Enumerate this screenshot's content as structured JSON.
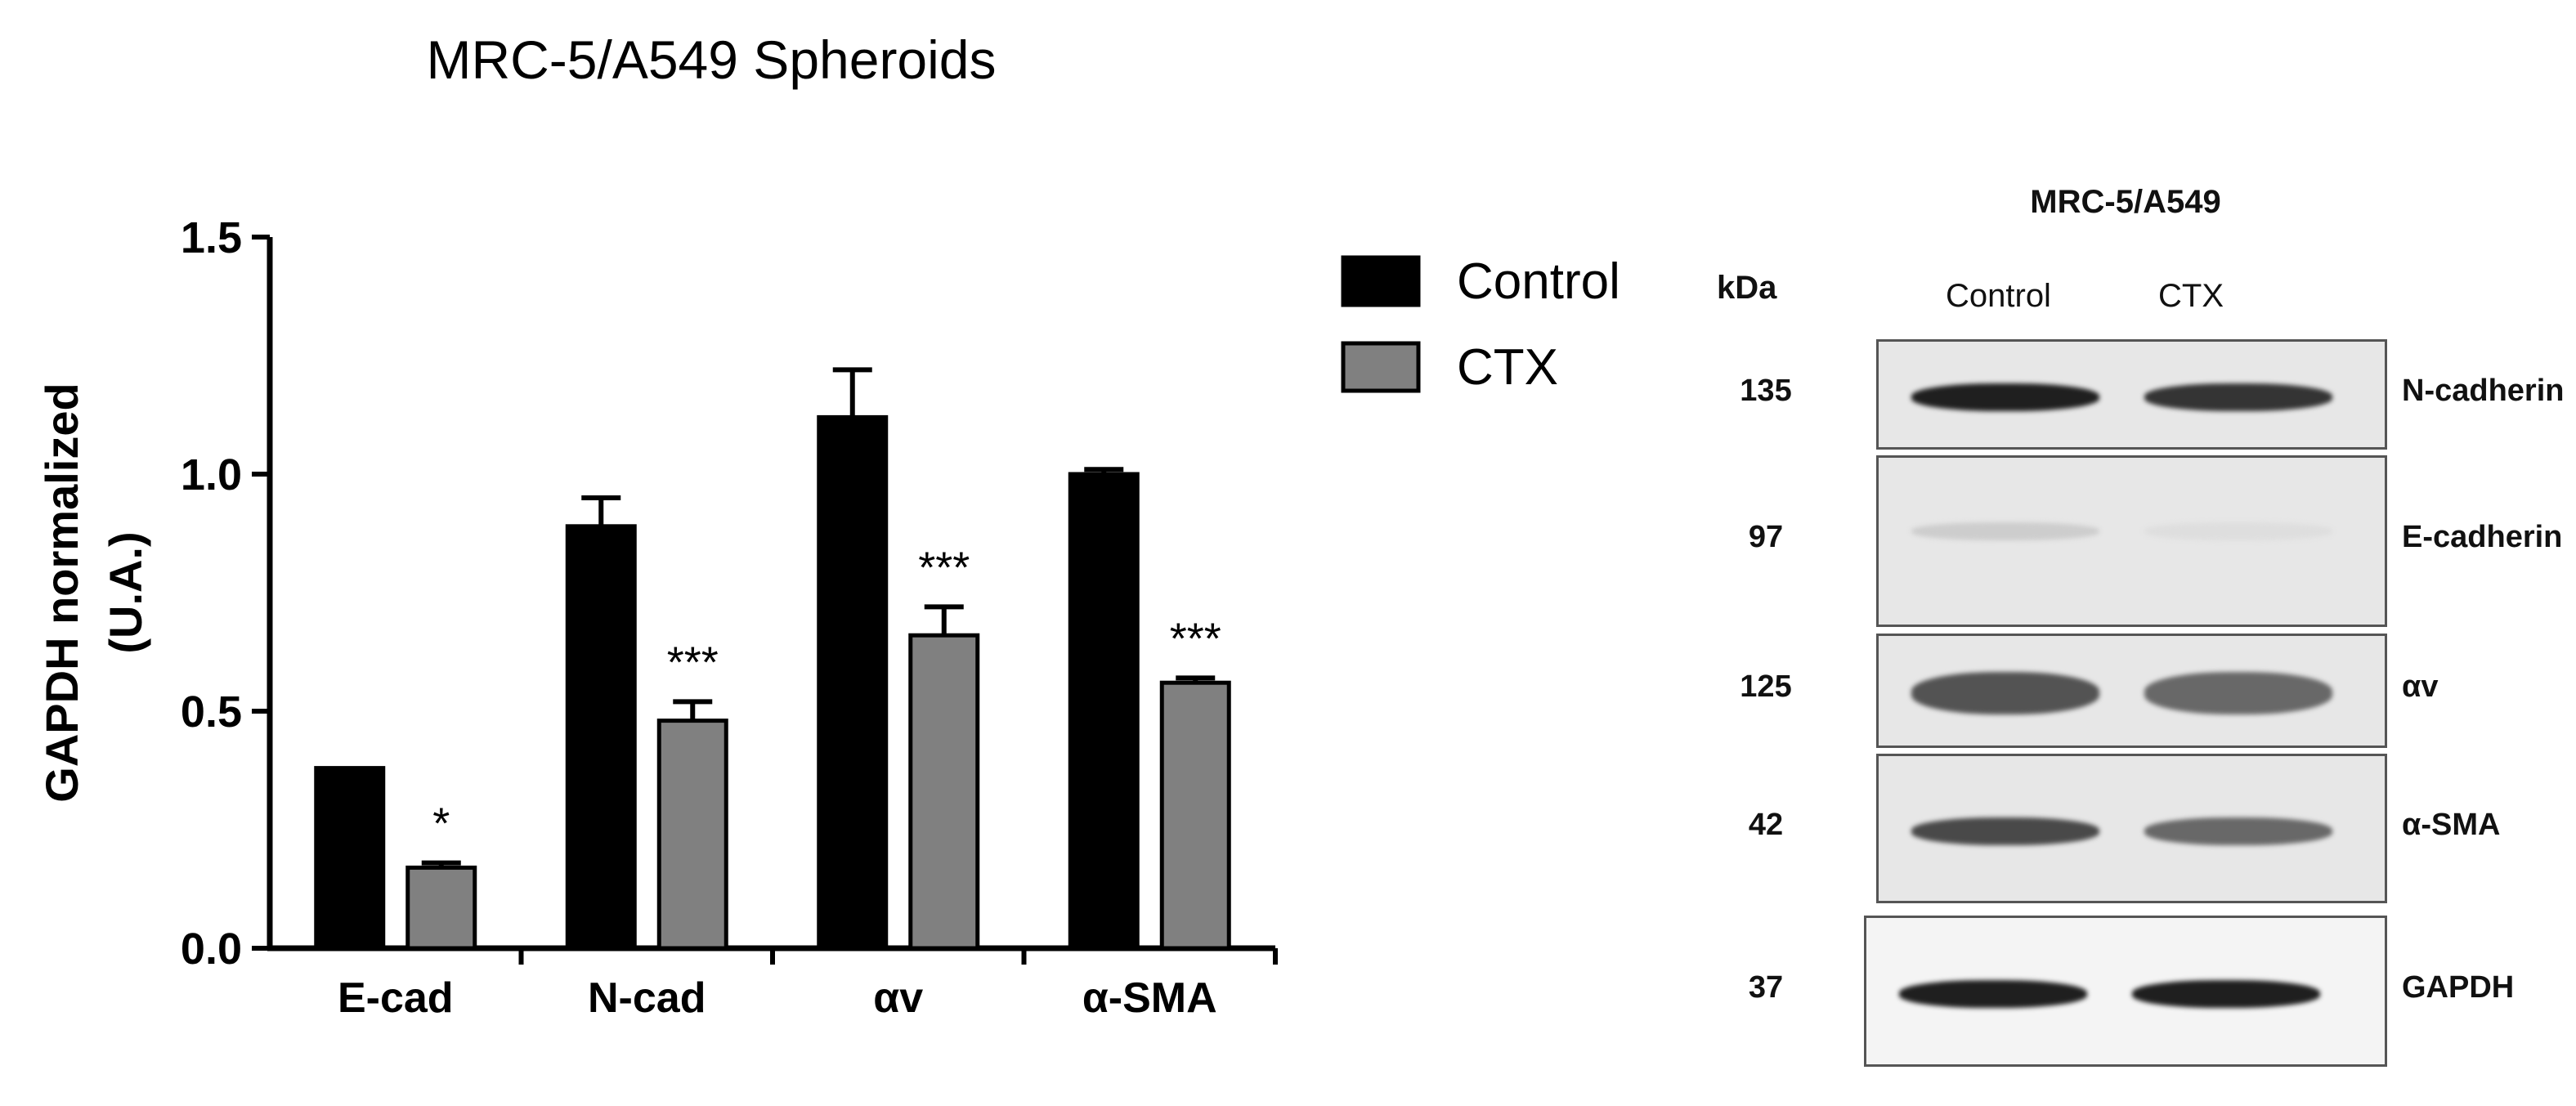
{
  "chart_data": {
    "type": "bar",
    "title": "MRC-5/A549 Spheroids",
    "ylabel_line1": "GAPDH normalized",
    "ylabel_line2": "(U.A.)",
    "xlabel": "",
    "ylim": [
      0,
      1.5
    ],
    "yticks": [
      "0.0",
      "0.5",
      "1.0",
      "1.5"
    ],
    "ytick_values": [
      0,
      0.5,
      1.0,
      1.5
    ],
    "categories": [
      "E-cad",
      "N-cad",
      "αv",
      "α-SMA"
    ],
    "series": [
      {
        "name": "Control",
        "color": "#000000",
        "values": [
          0.38,
          0.89,
          1.12,
          1.0
        ],
        "errors": [
          0.0,
          0.06,
          0.1,
          0.01
        ]
      },
      {
        "name": "CTX",
        "color": "#808080",
        "values": [
          0.17,
          0.48,
          0.66,
          0.56
        ],
        "errors": [
          0.01,
          0.04,
          0.06,
          0.01
        ]
      }
    ],
    "significance": [
      "*",
      "***",
      "***",
      "***"
    ],
    "legend": {
      "position": "top-right",
      "entries": [
        "Control",
        "CTX"
      ]
    }
  },
  "blot": {
    "title": "MRC-5/A549",
    "kda_header": "kDa",
    "lanes": [
      "Control",
      "CTX"
    ],
    "rows": [
      {
        "kda": "135",
        "protein": "N-cadherin",
        "intensity": [
          0.95,
          0.85
        ]
      },
      {
        "kda": "97",
        "protein": "E-cadherin",
        "intensity": [
          0.12,
          0.04
        ]
      },
      {
        "kda": "125",
        "protein": "αv",
        "intensity": [
          0.7,
          0.6
        ]
      },
      {
        "kda": "42",
        "protein": "α-SMA",
        "intensity": [
          0.75,
          0.6
        ]
      },
      {
        "kda": "37",
        "protein": "GAPDH",
        "intensity": [
          0.95,
          0.95
        ]
      }
    ]
  }
}
